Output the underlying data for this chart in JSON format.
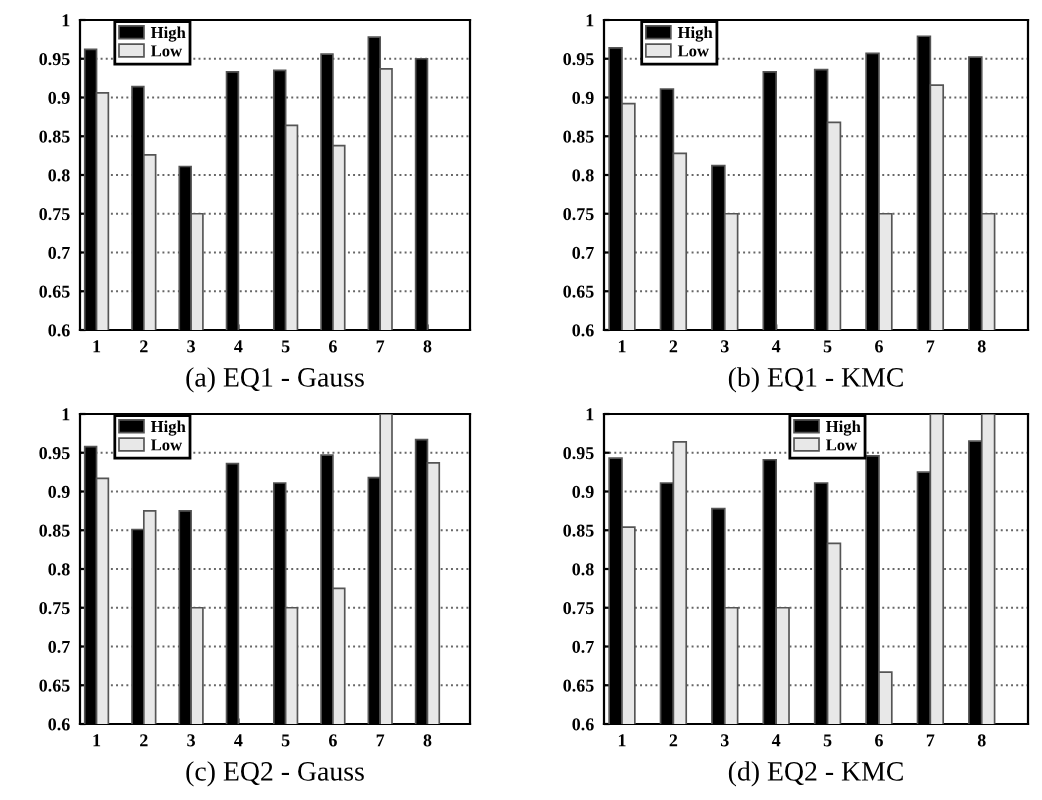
{
  "chart_data": [
    {
      "type": "bar",
      "title": "(a) EQ1 - Gauss",
      "categories": [
        "1",
        "2",
        "3",
        "4",
        "5",
        "6",
        "7",
        "8"
      ],
      "ylim": [
        0.6,
        1
      ],
      "yticks": [
        0.6,
        0.65,
        0.7,
        0.75,
        0.8,
        0.85,
        0.9,
        0.95,
        1
      ],
      "grid": "y",
      "legend": "top left",
      "series": [
        {
          "name": "High",
          "color": "#000000",
          "values": [
            0.962,
            0.914,
            0.811,
            0.933,
            0.935,
            0.956,
            0.978,
            0.95
          ]
        },
        {
          "name": "Low",
          "color": "#e8e8e8",
          "values": [
            0.906,
            0.826,
            0.75,
            null,
            0.864,
            0.838,
            0.937,
            null
          ]
        }
      ]
    },
    {
      "type": "bar",
      "title": "(b) EQ1 - KMC",
      "categories": [
        "1",
        "2",
        "3",
        "4",
        "5",
        "6",
        "7",
        "8"
      ],
      "ylim": [
        0.6,
        1
      ],
      "yticks": [
        0.6,
        0.65,
        0.7,
        0.75,
        0.8,
        0.85,
        0.9,
        0.95,
        1
      ],
      "grid": "y",
      "legend": "top left",
      "series": [
        {
          "name": "High",
          "color": "#000000",
          "values": [
            0.964,
            0.911,
            0.812,
            0.933,
            0.936,
            0.957,
            0.979,
            0.952
          ]
        },
        {
          "name": "Low",
          "color": "#e8e8e8",
          "values": [
            0.892,
            0.828,
            0.75,
            null,
            0.868,
            0.75,
            0.916,
            0.75
          ]
        }
      ]
    },
    {
      "type": "bar",
      "title": "(c) EQ2 - Gauss",
      "categories": [
        "1",
        "2",
        "3",
        "4",
        "5",
        "6",
        "7",
        "8"
      ],
      "ylim": [
        0.6,
        1
      ],
      "yticks": [
        0.6,
        0.65,
        0.7,
        0.75,
        0.8,
        0.85,
        0.9,
        0.95,
        1
      ],
      "grid": "y",
      "legend": "top left",
      "series": [
        {
          "name": "High",
          "color": "#000000",
          "values": [
            0.958,
            0.851,
            0.875,
            0.936,
            0.911,
            0.947,
            0.918,
            0.967
          ]
        },
        {
          "name": "Low",
          "color": "#e8e8e8",
          "values": [
            0.917,
            0.875,
            0.75,
            null,
            0.75,
            0.775,
            1.0,
            0.937
          ]
        }
      ]
    },
    {
      "type": "bar",
      "title": "(d) EQ2 - KMC",
      "categories": [
        "1",
        "2",
        "3",
        "4",
        "5",
        "6",
        "7",
        "8"
      ],
      "ylim": [
        0.6,
        1
      ],
      "yticks": [
        0.6,
        0.65,
        0.7,
        0.75,
        0.8,
        0.85,
        0.9,
        0.95,
        1
      ],
      "grid": "y",
      "legend": "top",
      "series": [
        {
          "name": "High",
          "color": "#000000",
          "values": [
            0.943,
            0.911,
            0.878,
            0.941,
            0.911,
            0.946,
            0.925,
            0.965
          ]
        },
        {
          "name": "Low",
          "color": "#e8e8e8",
          "values": [
            0.854,
            0.964,
            0.75,
            0.75,
            0.833,
            0.667,
            1.0,
            1.0
          ]
        }
      ]
    }
  ]
}
